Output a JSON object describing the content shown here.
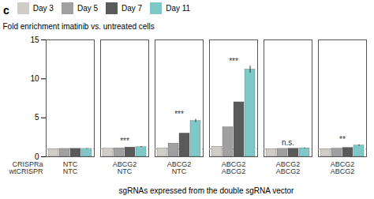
{
  "chart_data": {
    "type": "bar",
    "title": "c",
    "categories": [
      "NTC\nNTC",
      "ABCG2\nNTC",
      "ABCG2\nNTC",
      "ABCG2\nABCG2",
      "ABCG2\nABCG2",
      "ABCG2\nABCG2"
    ],
    "row_labels": [
      "CRISPRa",
      "wtCRISPR"
    ],
    "xlabel": "sgRNAs expressed from the double sgRNA vector",
    "ylabel": "Fold enrichment imatinib vs. untreated cells",
    "series": [
      {
        "name": "Day 3",
        "color": "#d0ccc8",
        "values": [
          1.0,
          1.05,
          1.1,
          1.3,
          1.0,
          1.0
        ]
      },
      {
        "name": "Day 5",
        "color": "#a0a0a0",
        "values": [
          1.02,
          1.1,
          1.7,
          3.8,
          1.02,
          1.06
        ]
      },
      {
        "name": "Day 7",
        "color": "#5a5a5a",
        "values": [
          1.03,
          1.2,
          3.0,
          7.0,
          1.05,
          1.15
        ]
      },
      {
        "name": "Day 11",
        "color": "#7ec8c8",
        "values": [
          1.02,
          1.25,
          4.6,
          11.2,
          1.1,
          1.45
        ],
        "errors": [
          0.04,
          0.07,
          0.2,
          0.45,
          0.05,
          0.1
        ]
      }
    ],
    "annotations": [
      null,
      "***",
      "***",
      "***",
      "n.s.",
      "**"
    ],
    "reference_line": 1.0,
    "ylim": [
      0,
      15
    ],
    "yticks": [
      0,
      5,
      10,
      15
    ],
    "legend": "upper left"
  }
}
